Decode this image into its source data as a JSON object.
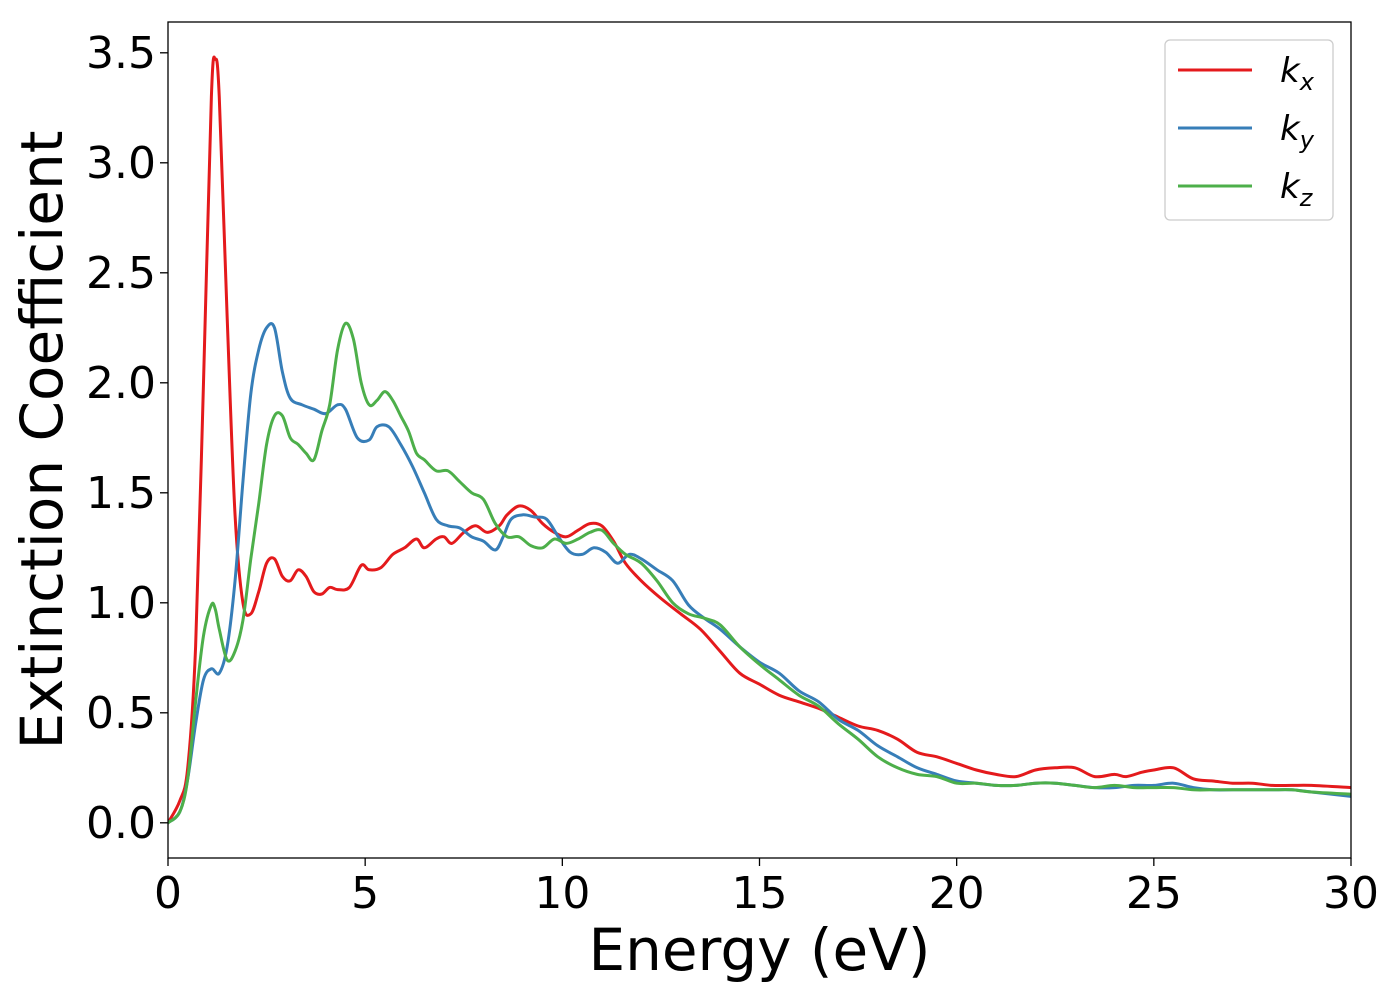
{
  "chart_data": {
    "type": "line",
    "title": "",
    "xlabel": "Energy (eV)",
    "ylabel": "Extinction Coefficient",
    "xlim": [
      0,
      30
    ],
    "ylim": [
      -0.16,
      3.64
    ],
    "xticks": [
      0,
      5,
      10,
      15,
      20,
      25,
      30
    ],
    "xtick_labels": [
      "0",
      "5",
      "10",
      "15",
      "20",
      "25",
      "30"
    ],
    "yticks": [
      0.0,
      0.5,
      1.0,
      1.5,
      2.0,
      2.5,
      3.0,
      3.5
    ],
    "ytick_labels": [
      "0.0",
      "0.5",
      "1.0",
      "1.5",
      "2.0",
      "2.5",
      "3.0",
      "3.5"
    ],
    "grid": false,
    "legend": {
      "placement": "upper right"
    },
    "series": [
      {
        "name": "k",
        "subscript": "x",
        "color": "#e41a1c",
        "x": [
          0,
          0.3,
          0.5,
          0.7,
          0.9,
          1.1,
          1.2,
          1.3,
          1.5,
          1.7,
          1.9,
          2.1,
          2.3,
          2.5,
          2.7,
          2.9,
          3.1,
          3.3,
          3.5,
          3.7,
          3.9,
          4.1,
          4.3,
          4.6,
          4.9,
          5.1,
          5.4,
          5.7,
          6.0,
          6.3,
          6.5,
          6.8,
          7.0,
          7.2,
          7.5,
          7.8,
          8.1,
          8.4,
          8.6,
          8.9,
          9.2,
          9.5,
          9.8,
          10.1,
          10.4,
          10.7,
          11.0,
          11.3,
          11.6,
          12.0,
          12.5,
          13.0,
          13.5,
          14.0,
          14.5,
          15.0,
          15.5,
          16.0,
          16.5,
          17.0,
          17.5,
          18.0,
          18.5,
          19.0,
          19.5,
          20.0,
          20.5,
          21.0,
          21.5,
          22.0,
          22.5,
          23.0,
          23.5,
          24.0,
          24.3,
          24.7,
          25.0,
          25.5,
          26.0,
          26.5,
          27.0,
          27.5,
          28.0,
          28.5,
          29.0,
          30.0
        ],
        "y": [
          0.0,
          0.1,
          0.25,
          0.8,
          2.0,
          3.3,
          3.47,
          3.3,
          2.3,
          1.4,
          1.0,
          0.95,
          1.05,
          1.18,
          1.2,
          1.12,
          1.1,
          1.15,
          1.12,
          1.05,
          1.04,
          1.07,
          1.06,
          1.07,
          1.17,
          1.15,
          1.16,
          1.22,
          1.25,
          1.29,
          1.25,
          1.29,
          1.3,
          1.27,
          1.32,
          1.35,
          1.32,
          1.35,
          1.4,
          1.44,
          1.42,
          1.36,
          1.32,
          1.3,
          1.33,
          1.36,
          1.35,
          1.28,
          1.18,
          1.1,
          1.02,
          0.95,
          0.88,
          0.78,
          0.68,
          0.63,
          0.58,
          0.55,
          0.52,
          0.48,
          0.44,
          0.42,
          0.38,
          0.32,
          0.3,
          0.27,
          0.24,
          0.22,
          0.21,
          0.24,
          0.25,
          0.25,
          0.21,
          0.22,
          0.21,
          0.23,
          0.24,
          0.25,
          0.2,
          0.19,
          0.18,
          0.18,
          0.17,
          0.17,
          0.17,
          0.16
        ]
      },
      {
        "name": "k",
        "subscript": "y",
        "color": "#377eb8",
        "x": [
          0,
          0.3,
          0.5,
          0.7,
          0.9,
          1.1,
          1.3,
          1.5,
          1.7,
          1.9,
          2.1,
          2.3,
          2.5,
          2.7,
          2.9,
          3.1,
          3.4,
          3.7,
          4.0,
          4.3,
          4.5,
          4.8,
          5.1,
          5.3,
          5.6,
          5.9,
          6.2,
          6.5,
          6.8,
          7.1,
          7.4,
          7.7,
          8.0,
          8.3,
          8.5,
          8.7,
          9.0,
          9.3,
          9.6,
          9.9,
          10.2,
          10.5,
          10.8,
          11.1,
          11.4,
          11.7,
          12.0,
          12.4,
          12.8,
          13.2,
          13.6,
          14.0,
          14.5,
          15.0,
          15.5,
          16.0,
          16.5,
          17.0,
          17.5,
          18.0,
          18.5,
          19.0,
          19.5,
          20.0,
          20.5,
          21.0,
          21.5,
          22.0,
          22.5,
          23.0,
          23.5,
          24.0,
          24.5,
          25.0,
          25.5,
          26.0,
          26.5,
          27.0,
          27.5,
          28.0,
          28.5,
          29.0,
          30.0
        ],
        "y": [
          0.0,
          0.05,
          0.2,
          0.45,
          0.65,
          0.7,
          0.68,
          0.8,
          1.1,
          1.55,
          1.95,
          2.15,
          2.25,
          2.25,
          2.05,
          1.93,
          1.9,
          1.88,
          1.86,
          1.9,
          1.88,
          1.75,
          1.74,
          1.8,
          1.8,
          1.72,
          1.62,
          1.5,
          1.38,
          1.35,
          1.34,
          1.3,
          1.28,
          1.24,
          1.3,
          1.38,
          1.4,
          1.39,
          1.38,
          1.3,
          1.23,
          1.22,
          1.25,
          1.23,
          1.18,
          1.22,
          1.2,
          1.15,
          1.1,
          0.99,
          0.93,
          0.88,
          0.8,
          0.73,
          0.68,
          0.6,
          0.55,
          0.47,
          0.42,
          0.35,
          0.3,
          0.25,
          0.22,
          0.19,
          0.18,
          0.17,
          0.17,
          0.18,
          0.18,
          0.17,
          0.16,
          0.16,
          0.17,
          0.17,
          0.18,
          0.16,
          0.15,
          0.15,
          0.15,
          0.15,
          0.15,
          0.14,
          0.12
        ]
      },
      {
        "name": "k",
        "subscript": "z",
        "color": "#4daf4a",
        "x": [
          0,
          0.3,
          0.5,
          0.7,
          0.9,
          1.1,
          1.2,
          1.3,
          1.5,
          1.7,
          1.9,
          2.1,
          2.3,
          2.5,
          2.7,
          2.9,
          3.1,
          3.3,
          3.5,
          3.7,
          3.9,
          4.1,
          4.3,
          4.5,
          4.7,
          4.9,
          5.1,
          5.3,
          5.5,
          5.7,
          5.9,
          6.1,
          6.3,
          6.5,
          6.8,
          7.1,
          7.4,
          7.7,
          8.0,
          8.3,
          8.6,
          8.9,
          9.2,
          9.5,
          9.8,
          10.1,
          10.4,
          10.7,
          11.0,
          11.3,
          11.6,
          12.0,
          12.4,
          12.8,
          13.2,
          13.6,
          14.0,
          14.5,
          15.0,
          15.5,
          16.0,
          16.5,
          17.0,
          17.5,
          18.0,
          18.5,
          19.0,
          19.5,
          20.0,
          20.5,
          21.0,
          21.5,
          22.0,
          22.5,
          23.0,
          23.5,
          24.0,
          24.5,
          25.0,
          25.5,
          26.0,
          26.5,
          27.0,
          27.5,
          28.0,
          28.5,
          29.0,
          30.0
        ],
        "y": [
          0.0,
          0.05,
          0.2,
          0.55,
          0.85,
          0.99,
          0.97,
          0.88,
          0.74,
          0.78,
          0.92,
          1.2,
          1.45,
          1.72,
          1.85,
          1.85,
          1.75,
          1.72,
          1.68,
          1.65,
          1.78,
          1.9,
          2.15,
          2.27,
          2.2,
          2.0,
          1.9,
          1.92,
          1.96,
          1.92,
          1.85,
          1.78,
          1.68,
          1.65,
          1.6,
          1.6,
          1.55,
          1.5,
          1.47,
          1.36,
          1.3,
          1.3,
          1.26,
          1.25,
          1.29,
          1.27,
          1.29,
          1.32,
          1.33,
          1.27,
          1.22,
          1.18,
          1.1,
          1.0,
          0.95,
          0.93,
          0.9,
          0.8,
          0.72,
          0.65,
          0.58,
          0.53,
          0.45,
          0.38,
          0.3,
          0.25,
          0.22,
          0.21,
          0.18,
          0.18,
          0.17,
          0.17,
          0.18,
          0.18,
          0.17,
          0.16,
          0.17,
          0.16,
          0.16,
          0.16,
          0.15,
          0.15,
          0.15,
          0.15,
          0.15,
          0.15,
          0.14,
          0.13
        ]
      }
    ]
  }
}
